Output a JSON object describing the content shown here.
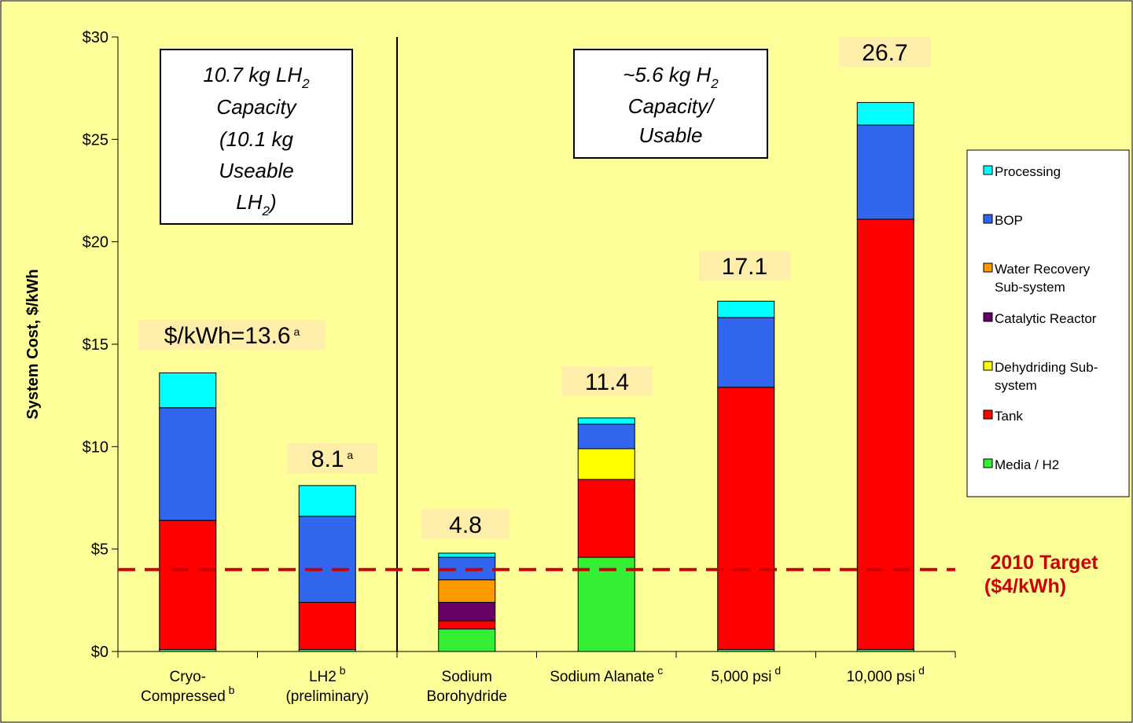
{
  "chart_data": {
    "type": "bar",
    "stacked": true,
    "ylabel": "System Cost, $/kWh",
    "ylim": [
      0,
      30
    ],
    "yticks": [
      "$0",
      "$5",
      "$10",
      "$15",
      "$20",
      "$25",
      "$30"
    ],
    "categories": [
      {
        "lines": [
          "Cryo-",
          "Compressed"
        ],
        "sup": "b"
      },
      {
        "lines": [
          "LH2",
          "(preliminary)"
        ],
        "sup": "b"
      },
      {
        "lines": [
          "Sodium",
          "Borohydride"
        ],
        "sup": ""
      },
      {
        "lines": [
          "Sodium Alanate"
        ],
        "sup": "c"
      },
      {
        "lines": [
          "5,000 psi"
        ],
        "sup": "d"
      },
      {
        "lines": [
          "10,000 psi"
        ],
        "sup": "d"
      }
    ],
    "series": [
      {
        "name": "Media / H2",
        "color": "#33ee33",
        "values": [
          0.1,
          0.1,
          1.1,
          4.6,
          0.1,
          0.1
        ]
      },
      {
        "name": "Tank",
        "color": "#ff0000",
        "values": [
          6.3,
          2.3,
          0.4,
          3.8,
          12.8,
          21.0
        ]
      },
      {
        "name": "Dehydriding Sub-system",
        "color": "#ffff00",
        "values": [
          0,
          0,
          0,
          1.5,
          0,
          0
        ]
      },
      {
        "name": "Catalytic Reactor",
        "color": "#660066",
        "values": [
          0,
          0,
          0.9,
          0,
          0,
          0
        ]
      },
      {
        "name": "Water Recovery Sub-system",
        "color": "#ff9900",
        "values": [
          0,
          0,
          1.1,
          0,
          0,
          0
        ]
      },
      {
        "name": "BOP",
        "color": "#3366ee",
        "values": [
          5.5,
          4.2,
          1.1,
          1.2,
          3.4,
          4.6
        ]
      },
      {
        "name": "Processing",
        "color": "#00ffff",
        "values": [
          1.7,
          1.5,
          0.2,
          0.3,
          0.8,
          1.1
        ]
      }
    ],
    "totals": [
      {
        "text": "$/kWh=13.6",
        "sup": "a"
      },
      {
        "text": "8.1",
        "sup": "a"
      },
      {
        "text": "4.8",
        "sup": ""
      },
      {
        "text": "11.4",
        "sup": ""
      },
      {
        "text": "17.1",
        "sup": ""
      },
      {
        "text": "26.7",
        "sup": ""
      }
    ],
    "target": {
      "value": 4,
      "label_line1": "2010 Target",
      "label_line2": "($4/kWh)",
      "color": "#cc0000"
    },
    "annotation_left": {
      "lines": [
        "10.7 kg LH",
        "Capacity",
        "(10.1 kg",
        "Useable",
        "LH"
      ],
      "subscript": "2",
      "tail": ")"
    },
    "annotation_right": {
      "lines": [
        "~5.6 kg H",
        "Capacity/",
        "Usable"
      ],
      "subscript": "2"
    },
    "legend_order": [
      "Processing",
      "BOP",
      "Water Recovery Sub-system",
      "Catalytic Reactor",
      "Dehydriding Sub-system",
      "Tank",
      "Media / H2"
    ],
    "legend_labels": {
      "Processing": [
        "Processing"
      ],
      "BOP": [
        "BOP"
      ],
      "Water Recovery Sub-system": [
        "Water Recovery",
        "Sub-system"
      ],
      "Catalytic Reactor": [
        "Catalytic Reactor"
      ],
      "Dehydriding Sub-system": [
        "Dehydriding Sub-",
        "system"
      ],
      "Tank": [
        "Tank"
      ],
      "Media / H2": [
        "Media / H2"
      ]
    },
    "colors": {
      "background": "#ffff99",
      "label_highlight": "#ffeeaa"
    }
  }
}
